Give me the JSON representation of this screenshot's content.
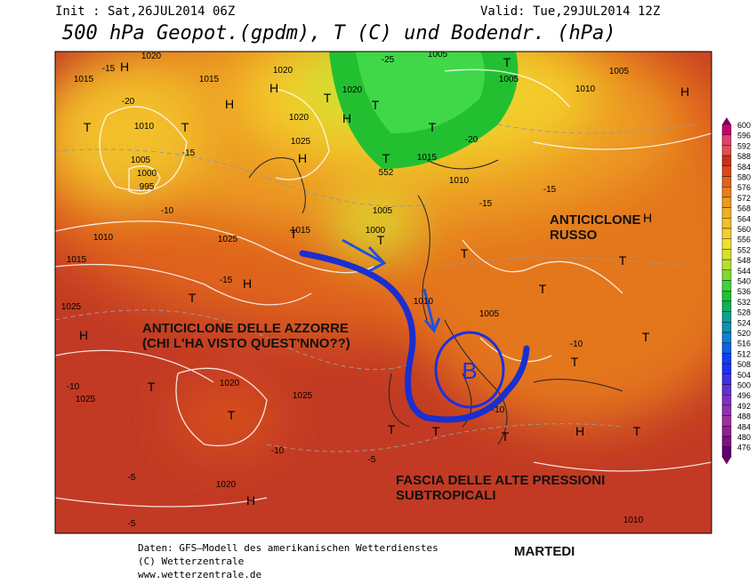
{
  "header": {
    "init": "Init : Sat,26JUL2014 06Z",
    "valid": "Valid: Tue,29JUL2014 12Z",
    "title": "500 hPa Geopot.(gpdm), T (C) und Bodendr. (hPa)"
  },
  "annotations": {
    "russo": [
      "ANTICICLONE",
      "RUSSO"
    ],
    "azzorre": [
      "ANTICICLONE DELLE AZZORRE",
      "(CHI L'HA VISTO QUEST'NNO??)"
    ],
    "fascia": [
      "FASCIA DELLE ALTE PRESSIONI",
      "SUBTROPICALI"
    ],
    "low": "B"
  },
  "colorbar": [
    600,
    596,
    592,
    588,
    584,
    580,
    576,
    572,
    568,
    564,
    560,
    556,
    552,
    548,
    544,
    540,
    536,
    532,
    528,
    524,
    520,
    516,
    512,
    508,
    504,
    500,
    496,
    492,
    488,
    484,
    480,
    476
  ],
  "map_labels": [
    "H",
    "1020",
    "1015",
    "-15",
    "1015",
    "1020",
    "H",
    "H",
    "1020",
    "T",
    "-20",
    "1010",
    "T",
    "1005",
    "1000",
    "995",
    "-15",
    "1020",
    "1025",
    "H",
    "T",
    "H",
    "T",
    "T",
    "T",
    "552",
    "-25",
    "1005",
    "T",
    "1005",
    "1010",
    "1005",
    "H",
    "-20",
    "1015",
    "1010",
    "-15",
    "-15",
    "1005",
    "1000",
    "T",
    "1015",
    "T",
    "1010",
    "1015",
    "-10",
    "1025",
    "H",
    "T",
    "1025",
    "H",
    "-15",
    "T",
    "1020",
    "T",
    "1025",
    "-10",
    "1020",
    "H",
    "-5",
    "T",
    "T",
    "-5",
    "T",
    "1005",
    "-10",
    "T",
    "T",
    "H",
    "T",
    "1010",
    "-5",
    "-10",
    "1025",
    "H",
    "T",
    "T",
    "1010",
    "-10",
    "T"
  ],
  "footer": {
    "source": "Daten: GFS—Modell des amerikanischen Wetterdienstes",
    "copyright": "(C) Wetterzentrale",
    "url": "www.wetterzentrale.de",
    "day": "MARTEDI"
  }
}
